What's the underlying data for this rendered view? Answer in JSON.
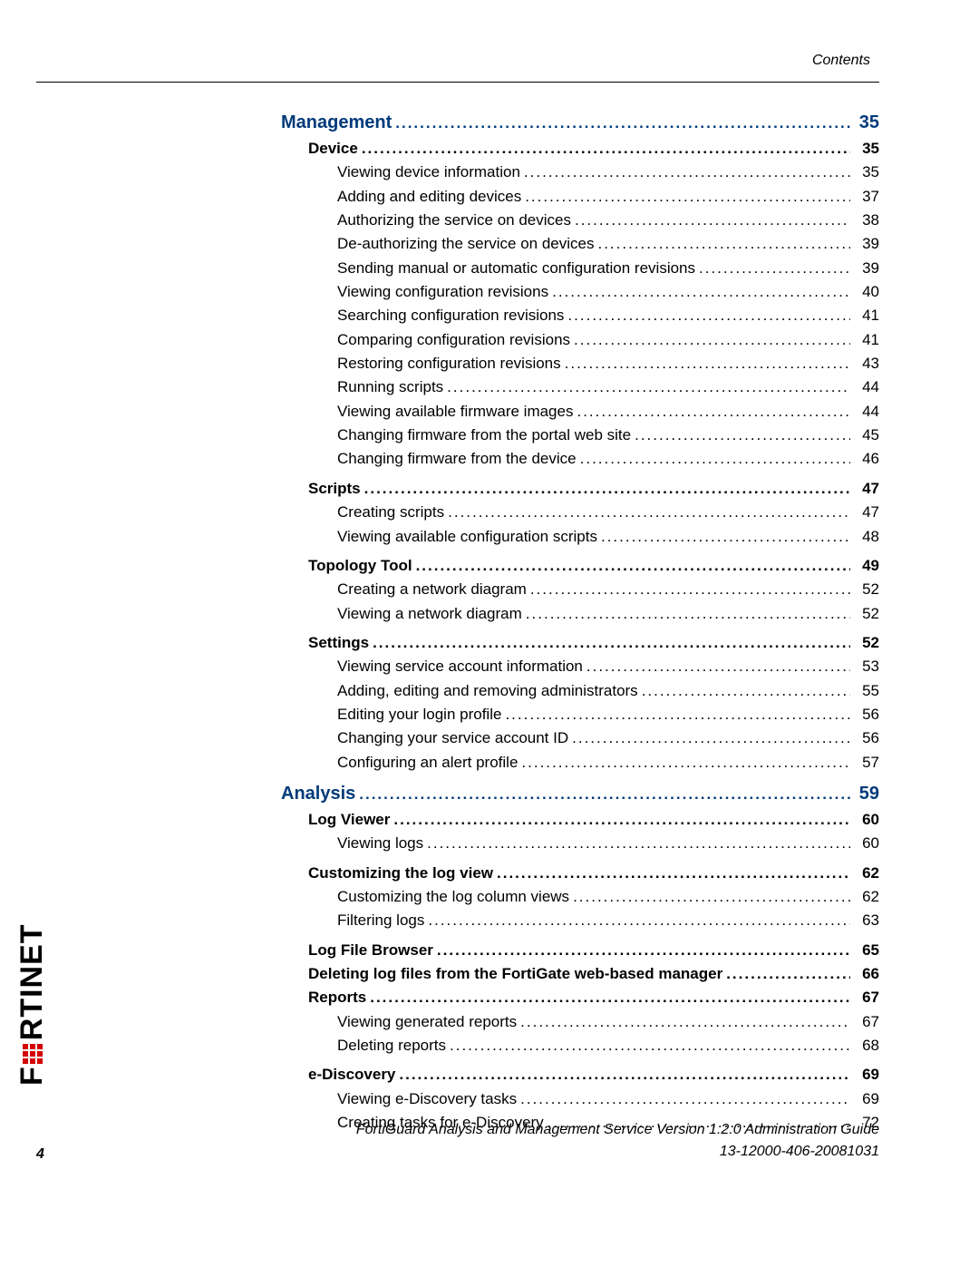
{
  "header": {
    "right": "Contents"
  },
  "toc": [
    {
      "cls": "chapter",
      "label": "Management",
      "page": "35"
    },
    {
      "cls": "section indent1",
      "label": "Device",
      "page": "35"
    },
    {
      "cls": "indent2",
      "label": "Viewing device information",
      "page": "35"
    },
    {
      "cls": "indent2",
      "label": "Adding and editing devices",
      "page": "37"
    },
    {
      "cls": "indent2",
      "label": "Authorizing the service on devices",
      "page": "38"
    },
    {
      "cls": "indent2",
      "label": "De-authorizing the service on devices",
      "page": "39"
    },
    {
      "cls": "indent2",
      "label": "Sending manual or automatic configuration revisions",
      "page": "39"
    },
    {
      "cls": "indent2",
      "label": "Viewing configuration revisions",
      "page": "40"
    },
    {
      "cls": "indent2",
      "label": "Searching configuration revisions",
      "page": "41"
    },
    {
      "cls": "indent2",
      "label": "Comparing configuration revisions",
      "page": "41"
    },
    {
      "cls": "indent2",
      "label": "Restoring configuration revisions",
      "page": "43"
    },
    {
      "cls": "indent2",
      "label": "Running scripts",
      "page": "44"
    },
    {
      "cls": "indent2",
      "label": "Viewing available firmware images",
      "page": "44"
    },
    {
      "cls": "indent2",
      "label": "Changing firmware from the portal web site",
      "page": "45"
    },
    {
      "cls": "indent2",
      "label": "Changing firmware from the device",
      "page": "46"
    },
    {
      "cls": "spacer"
    },
    {
      "cls": "section indent1",
      "label": "Scripts",
      "page": "47"
    },
    {
      "cls": "indent2",
      "label": "Creating scripts",
      "page": "47"
    },
    {
      "cls": "indent2",
      "label": "Viewing available configuration scripts",
      "page": "48"
    },
    {
      "cls": "spacer"
    },
    {
      "cls": "section indent1",
      "label": "Topology Tool",
      "page": "49"
    },
    {
      "cls": "indent2",
      "label": "Creating a network diagram",
      "page": "52"
    },
    {
      "cls": "indent2",
      "label": "Viewing a network diagram",
      "page": "52"
    },
    {
      "cls": "spacer"
    },
    {
      "cls": "section indent1",
      "label": "Settings",
      "page": "52"
    },
    {
      "cls": "indent2",
      "label": "Viewing service account information",
      "page": "53"
    },
    {
      "cls": "indent2",
      "label": "Adding, editing and removing administrators",
      "page": "55"
    },
    {
      "cls": "indent2",
      "label": "Editing your login profile",
      "page": "56"
    },
    {
      "cls": "indent2",
      "label": "Changing your service account ID",
      "page": "56"
    },
    {
      "cls": "indent2",
      "label": "Configuring an alert profile",
      "page": "57"
    },
    {
      "cls": "spacer"
    },
    {
      "cls": "chapter",
      "label": "Analysis",
      "page": "59"
    },
    {
      "cls": "section indent1",
      "label": "Log Viewer",
      "page": "60"
    },
    {
      "cls": "indent2",
      "label": "Viewing logs",
      "page": "60"
    },
    {
      "cls": "spacer"
    },
    {
      "cls": "section indent1",
      "label": "Customizing the log view",
      "page": "62"
    },
    {
      "cls": "indent2",
      "label": "Customizing the log column views",
      "page": "62"
    },
    {
      "cls": "indent2",
      "label": "Filtering logs",
      "page": "63"
    },
    {
      "cls": "spacer"
    },
    {
      "cls": "section indent1",
      "label": "Log File Browser",
      "page": "65"
    },
    {
      "cls": "section indent1",
      "label": "Deleting log files from the FortiGate web-based manager",
      "page": "66"
    },
    {
      "cls": "section indent1",
      "label": "Reports",
      "page": "67"
    },
    {
      "cls": "indent2",
      "label": "Viewing generated reports",
      "page": "67"
    },
    {
      "cls": "indent2",
      "label": "Deleting reports",
      "page": "68"
    },
    {
      "cls": "spacer"
    },
    {
      "cls": "section indent1",
      "label": "e-Discovery",
      "page": "69"
    },
    {
      "cls": "indent2",
      "label": "Viewing e-Discovery tasks",
      "page": "69"
    },
    {
      "cls": "indent2",
      "label": "Creating tasks for e-Discovery",
      "page": "72"
    }
  ],
  "footer": {
    "line1": "FortiGuard Analysis and Management Service Version 1.2.0 Administration Guide",
    "line2": "13-12000-406-20081031",
    "pagenum": "4"
  },
  "logo": {
    "left": "F",
    "right": "RTINET"
  },
  "dotfill": "......................................................................................................................................................................................................"
}
